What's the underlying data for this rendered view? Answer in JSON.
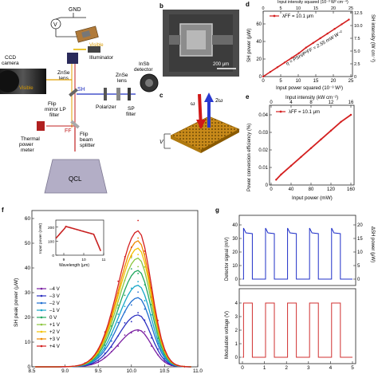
{
  "panel_labels": {
    "b": "b",
    "c": "c",
    "d": "d",
    "e": "e",
    "f": "f",
    "g": "g"
  },
  "setup": {
    "gnd": "GND",
    "voltage_symbol": "V",
    "visible_top": "Visible",
    "illuminator": "Illuminator",
    "ccd": "CCD\ncamera",
    "znse_lens_left": "ZnSe\nlens",
    "insb": "InSb\ndetector",
    "visible_left": "Visible",
    "sh": "SH",
    "znse_lens_right": "ZnSe\nlens",
    "flip_mirror": "Flip\nmirror LP\nfilter",
    "polarizer": "Polarizer",
    "sp_filter": "SP\nfilter",
    "ff": "FF",
    "thermal": "Thermal\npower\nmeter",
    "flip_beam": "Flip\nbeam\nsplitter",
    "qcl": "QCL"
  },
  "sem": {
    "scale_label": "200 μm"
  },
  "device": {
    "omega": "ω",
    "two_omega": "2ω",
    "v": "V"
  },
  "panel_d": {
    "top_axis_label": "Input intensity squared (10⁻³ W² cm⁻⁴)",
    "top_ticks": [
      "0",
      "5",
      "10",
      "15",
      "20",
      "25"
    ],
    "xlabel": "Input power squared (10⁻³ W²)",
    "xticks": [
      "0",
      "5",
      "10",
      "15",
      "20",
      "25"
    ],
    "ylabel": "SH power (μW)",
    "yticks": [
      "0",
      "20",
      "40",
      "60"
    ],
    "y2label": "SH intensity (W cm⁻²)",
    "y2ticks": [
      "0",
      "2.5",
      "5.0",
      "7.5",
      "10.0",
      "12.5"
    ],
    "legend": "λFF = 10.1 μm",
    "equation": "η = PSH/P²FF = 2.55 mW W⁻²"
  },
  "panel_e": {
    "top_axis_label": "Input intensity (kW cm⁻²)",
    "top_ticks": [
      "0",
      "4",
      "8",
      "12",
      "16"
    ],
    "xlabel": "Input power (mW)",
    "xticks": [
      "0",
      "40",
      "80",
      "120",
      "160"
    ],
    "ylabel": "Power conversion efficiency (%)",
    "yticks": [
      "0",
      "0.01",
      "0.02",
      "0.03",
      "0.04"
    ],
    "legend": "λFF = 10.1 μm"
  },
  "panel_f": {
    "ylabel": "SH peak power (μW)",
    "xticks": [
      "8.5",
      "9.0",
      "9.5",
      "10.0",
      "10.5",
      "11.0"
    ],
    "yticks": [
      "0",
      "10",
      "20",
      "30",
      "40",
      "50",
      "60"
    ],
    "inset": {
      "ylabel": "Input power (mW)",
      "xlabel": "Wavelength (μm)",
      "xticks": [
        "9",
        "10",
        "11"
      ],
      "yticks": [
        "0",
        "100",
        "200"
      ]
    },
    "legend": [
      "–4 V",
      "–3 V",
      "–2 V",
      "–1 V",
      "0 V",
      "+1 V",
      "+2 V",
      "+3 V",
      "+4 V"
    ],
    "colors": [
      "#7a1fa2",
      "#2b2fc0",
      "#1f6fd0",
      "#18a7c8",
      "#22a860",
      "#8cc63f",
      "#f2c200",
      "#f08a00",
      "#d42020"
    ]
  },
  "panel_g": {
    "top_ylabel": "Detector signal (mV)",
    "top_yticks": [
      "0",
      "10",
      "20",
      "30",
      "40"
    ],
    "top_y2label": "ΔSH power (μW)",
    "top_y2ticks": [
      "0",
      "5",
      "10",
      "15",
      "20"
    ],
    "bottom_ylabel": "Modulation voltage (V)",
    "bottom_yticks": [
      "0",
      "1",
      "2",
      "3",
      "4"
    ],
    "xticks": [
      "0",
      "1",
      "2",
      "3",
      "4",
      "5"
    ]
  },
  "chart_data": [
    {
      "type": "scatter",
      "panel": "d",
      "xlabel": "Input power squared (10⁻³ W²)",
      "ylabel": "SH power (μW)",
      "xlim": [
        0,
        25
      ],
      "ylim": [
        0,
        70
      ],
      "series": [
        {
          "name": "λFF = 10.1 μm",
          "x": [
            0,
            2,
            4,
            6,
            8,
            10,
            12,
            14,
            16,
            18,
            20,
            22,
            24
          ],
          "y": [
            0,
            5,
            10,
            15,
            20,
            25,
            31,
            36,
            41,
            46,
            51,
            56,
            61
          ]
        }
      ]
    },
    {
      "type": "scatter",
      "panel": "e",
      "xlabel": "Input power (mW)",
      "ylabel": "Power conversion efficiency (%)",
      "xlim": [
        0,
        160
      ],
      "ylim": [
        0,
        0.045
      ],
      "series": [
        {
          "name": "λFF = 10.1 μm",
          "x": [
            10,
            20,
            40,
            60,
            80,
            100,
            120,
            140,
            160
          ],
          "y": [
            0.003,
            0.006,
            0.011,
            0.016,
            0.021,
            0.026,
            0.031,
            0.036,
            0.04
          ]
        }
      ]
    },
    {
      "type": "line",
      "panel": "f",
      "ylabel": "SH peak power (μW)",
      "xlim": [
        8.5,
        11.0
      ],
      "ylim": [
        0,
        65
      ],
      "series": [
        {
          "name": "–4 V",
          "peak_x": 10.1,
          "peak_y": 15
        },
        {
          "name": "–3 V",
          "peak_x": 10.1,
          "peak_y": 21
        },
        {
          "name": "–2 V",
          "peak_x": 10.1,
          "peak_y": 28
        },
        {
          "name": "–1 V",
          "peak_x": 10.1,
          "peak_y": 33
        },
        {
          "name": "0 V",
          "peak_x": 10.1,
          "peak_y": 39
        },
        {
          "name": "+1 V",
          "peak_x": 10.1,
          "peak_y": 44
        },
        {
          "name": "+2 V",
          "peak_x": 10.1,
          "peak_y": 48
        },
        {
          "name": "+3 V",
          "peak_x": 10.1,
          "peak_y": 51
        },
        {
          "name": "+4 V",
          "peak_x": 10.1,
          "peak_y": 55
        }
      ]
    },
    {
      "type": "line",
      "panel": "g",
      "xlim": [
        0,
        5
      ],
      "series": [
        {
          "name": "Detector signal (mV)",
          "levels": [
            0,
            35
          ],
          "period_s": 1
        },
        {
          "name": "Modulation voltage (V)",
          "levels": [
            0,
            4
          ],
          "period_s": 1
        }
      ]
    }
  ]
}
